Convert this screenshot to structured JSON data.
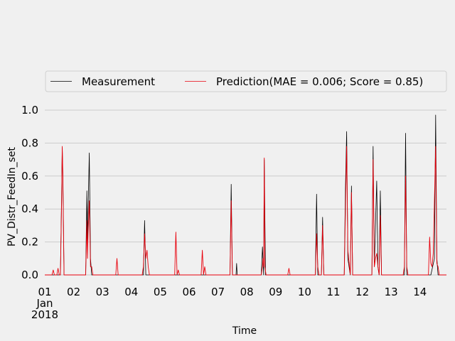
{
  "chart_data": {
    "type": "line",
    "xlabel": "Time",
    "ylabel": "PV_Distr_FeedIn_set",
    "ylim": [
      0.0,
      1.1
    ],
    "xlim": [
      "2018-01-01",
      "2018-01-14T22:00"
    ],
    "grid": "horizontal",
    "legend_placement": "top",
    "x_tick_labels": [
      "01",
      "02",
      "03",
      "04",
      "05",
      "06",
      "07",
      "08",
      "09",
      "10",
      "11",
      "12",
      "13",
      "14"
    ],
    "x_tick_dates": [
      "2018-01-01",
      "2018-01-02",
      "2018-01-03",
      "2018-01-04",
      "2018-01-05",
      "2018-01-06",
      "2018-01-07",
      "2018-01-08",
      "2018-01-09",
      "2018-01-10",
      "2018-01-11",
      "2018-01-12",
      "2018-01-13",
      "2018-01-14"
    ],
    "x_tick_sub": [
      "Jan",
      "2018"
    ],
    "y_ticks": [
      0.0,
      0.2,
      0.4,
      0.6,
      0.8,
      1.0
    ],
    "y_tick_labels": [
      "0.0",
      "0.2",
      "0.4",
      "0.6",
      "0.8",
      "1.0"
    ],
    "series": [
      {
        "name": "Measurement",
        "color": "#000000",
        "points": [
          [
            "2018-01-01T00:00",
            0.0
          ],
          [
            "2018-01-01T13:00",
            0.0
          ],
          [
            "2018-01-01T14:00",
            0.5
          ],
          [
            "2018-01-01T14:30",
            0.77
          ],
          [
            "2018-01-01T15:00",
            0.6
          ],
          [
            "2018-01-01T16:00",
            0.0
          ],
          [
            "2018-01-02T10:00",
            0.0
          ],
          [
            "2018-01-02T11:00",
            0.51
          ],
          [
            "2018-01-02T11:30",
            0.2
          ],
          [
            "2018-01-02T12:00",
            0.38
          ],
          [
            "2018-01-02T13:00",
            0.74
          ],
          [
            "2018-01-02T14:00",
            0.1
          ],
          [
            "2018-01-02T15:00",
            0.0
          ],
          [
            "2018-01-04T10:00",
            0.0
          ],
          [
            "2018-01-04T11:00",
            0.33
          ],
          [
            "2018-01-04T12:00",
            0.0
          ],
          [
            "2018-01-07T10:00",
            0.0
          ],
          [
            "2018-01-07T11:00",
            0.55
          ],
          [
            "2018-01-07T12:00",
            0.0
          ],
          [
            "2018-01-07T15:00",
            0.0
          ],
          [
            "2018-01-07T15:30",
            0.07
          ],
          [
            "2018-01-07T16:00",
            0.0
          ],
          [
            "2018-01-08T12:00",
            0.0
          ],
          [
            "2018-01-08T13:00",
            0.17
          ],
          [
            "2018-01-08T14:00",
            0.0
          ],
          [
            "2018-01-08T14:30",
            0.7
          ],
          [
            "2018-01-08T15:30",
            0.0
          ],
          [
            "2018-01-10T09:00",
            0.0
          ],
          [
            "2018-01-10T10:00",
            0.49
          ],
          [
            "2018-01-10T11:00",
            0.0
          ],
          [
            "2018-01-10T14:00",
            0.0
          ],
          [
            "2018-01-10T15:00",
            0.35
          ],
          [
            "2018-01-10T16:00",
            0.0
          ],
          [
            "2018-01-11T09:00",
            0.0
          ],
          [
            "2018-01-11T10:00",
            0.52
          ],
          [
            "2018-01-11T11:00",
            0.87
          ],
          [
            "2018-01-11T12:00",
            0.1
          ],
          [
            "2018-01-11T14:00",
            0.0
          ],
          [
            "2018-01-11T15:00",
            0.54
          ],
          [
            "2018-01-11T16:00",
            0.0
          ],
          [
            "2018-01-12T08:00",
            0.0
          ],
          [
            "2018-01-12T09:00",
            0.78
          ],
          [
            "2018-01-12T10:00",
            0.05
          ],
          [
            "2018-01-12T12:00",
            0.57
          ],
          [
            "2018-01-12T13:00",
            0.05
          ],
          [
            "2018-01-12T14:00",
            0.0
          ],
          [
            "2018-01-12T15:00",
            0.51
          ],
          [
            "2018-01-12T16:00",
            0.0
          ],
          [
            "2018-01-13T11:00",
            0.0
          ],
          [
            "2018-01-13T12:00",
            0.86
          ],
          [
            "2018-01-13T13:00",
            0.0
          ],
          [
            "2018-01-14T09:00",
            0.0
          ],
          [
            "2018-01-14T12:00",
            0.1
          ],
          [
            "2018-01-14T13:00",
            0.97
          ],
          [
            "2018-01-14T14:00",
            0.1
          ],
          [
            "2018-01-14T15:00",
            0.0
          ],
          [
            "2018-01-14T22:00",
            0.0
          ]
        ]
      },
      {
        "name": "Prediction(MAE = 0.006; Score = 0.85)",
        "color": "#e8000b",
        "points": [
          [
            "2018-01-01T00:00",
            0.0
          ],
          [
            "2018-01-01T06:00",
            0.0
          ],
          [
            "2018-01-01T07:00",
            0.03
          ],
          [
            "2018-01-01T08:00",
            0.0
          ],
          [
            "2018-01-01T10:00",
            0.0
          ],
          [
            "2018-01-01T11:00",
            0.04
          ],
          [
            "2018-01-01T12:00",
            0.0
          ],
          [
            "2018-01-01T13:00",
            0.0
          ],
          [
            "2018-01-01T14:00",
            0.45
          ],
          [
            "2018-01-01T14:30",
            0.78
          ],
          [
            "2018-01-01T15:00",
            0.62
          ],
          [
            "2018-01-01T16:00",
            0.0
          ],
          [
            "2018-01-02T10:00",
            0.0
          ],
          [
            "2018-01-02T11:00",
            0.33
          ],
          [
            "2018-01-02T11:30",
            0.1
          ],
          [
            "2018-01-02T12:00",
            0.25
          ],
          [
            "2018-01-02T13:00",
            0.45
          ],
          [
            "2018-01-02T14:00",
            0.05
          ],
          [
            "2018-01-02T15:00",
            0.05
          ],
          [
            "2018-01-02T16:00",
            0.0
          ],
          [
            "2018-01-03T11:00",
            0.0
          ],
          [
            "2018-01-03T12:00",
            0.1
          ],
          [
            "2018-01-03T13:00",
            0.0
          ],
          [
            "2018-01-04T09:00",
            0.0
          ],
          [
            "2018-01-04T10:00",
            0.05
          ],
          [
            "2018-01-04T11:00",
            0.25
          ],
          [
            "2018-01-04T12:00",
            0.1
          ],
          [
            "2018-01-04T13:00",
            0.15
          ],
          [
            "2018-01-04T14:00",
            0.05
          ],
          [
            "2018-01-04T15:00",
            0.0
          ],
          [
            "2018-01-05T12:00",
            0.0
          ],
          [
            "2018-01-05T13:00",
            0.26
          ],
          [
            "2018-01-05T14:00",
            0.0
          ],
          [
            "2018-01-05T15:00",
            0.03
          ],
          [
            "2018-01-05T16:00",
            0.0
          ],
          [
            "2018-01-06T10:00",
            0.0
          ],
          [
            "2018-01-06T11:00",
            0.15
          ],
          [
            "2018-01-06T12:00",
            0.0
          ],
          [
            "2018-01-06T13:00",
            0.05
          ],
          [
            "2018-01-06T14:00",
            0.0
          ],
          [
            "2018-01-07T10:00",
            0.0
          ],
          [
            "2018-01-07T11:00",
            0.45
          ],
          [
            "2018-01-07T12:00",
            0.0
          ],
          [
            "2018-01-08T12:00",
            0.0
          ],
          [
            "2018-01-08T13:00",
            0.05
          ],
          [
            "2018-01-08T13:30",
            0.1
          ],
          [
            "2018-01-08T14:00",
            0.05
          ],
          [
            "2018-01-08T14:30",
            0.71
          ],
          [
            "2018-01-08T15:00",
            0.05
          ],
          [
            "2018-01-08T16:00",
            0.0
          ],
          [
            "2018-01-09T10:00",
            0.0
          ],
          [
            "2018-01-09T11:00",
            0.04
          ],
          [
            "2018-01-09T12:00",
            0.0
          ],
          [
            "2018-01-10T09:00",
            0.0
          ],
          [
            "2018-01-10T10:00",
            0.25
          ],
          [
            "2018-01-10T11:00",
            0.05
          ],
          [
            "2018-01-10T12:00",
            0.0
          ],
          [
            "2018-01-10T14:00",
            0.0
          ],
          [
            "2018-01-10T15:00",
            0.3
          ],
          [
            "2018-01-10T16:00",
            0.0
          ],
          [
            "2018-01-11T09:00",
            0.0
          ],
          [
            "2018-01-11T10:00",
            0.4
          ],
          [
            "2018-01-11T11:00",
            0.78
          ],
          [
            "2018-01-11T12:00",
            0.15
          ],
          [
            "2018-01-11T14:00",
            0.0
          ],
          [
            "2018-01-11T15:00",
            0.5
          ],
          [
            "2018-01-11T16:00",
            0.0
          ],
          [
            "2018-01-12T08:00",
            0.0
          ],
          [
            "2018-01-12T09:00",
            0.7
          ],
          [
            "2018-01-12T10:00",
            0.05
          ],
          [
            "2018-01-12T11:00",
            0.1
          ],
          [
            "2018-01-12T12:00",
            0.13
          ],
          [
            "2018-01-12T13:00",
            0.05
          ],
          [
            "2018-01-12T14:00",
            0.0
          ],
          [
            "2018-01-12T15:00",
            0.36
          ],
          [
            "2018-01-12T16:00",
            0.0
          ],
          [
            "2018-01-13T10:00",
            0.0
          ],
          [
            "2018-01-13T11:00",
            0.05
          ],
          [
            "2018-01-13T12:00",
            0.6
          ],
          [
            "2018-01-13T13:00",
            0.05
          ],
          [
            "2018-01-13T14:00",
            0.0
          ],
          [
            "2018-01-14T07:00",
            0.0
          ],
          [
            "2018-01-14T08:00",
            0.23
          ],
          [
            "2018-01-14T09:00",
            0.07
          ],
          [
            "2018-01-14T10:00",
            0.05
          ],
          [
            "2018-01-14T11:00",
            0.13
          ],
          [
            "2018-01-14T13:00",
            0.78
          ],
          [
            "2018-01-14T14:00",
            0.07
          ],
          [
            "2018-01-14T15:00",
            0.05
          ],
          [
            "2018-01-14T16:00",
            0.0
          ],
          [
            "2018-01-14T22:00",
            0.0
          ]
        ]
      }
    ]
  },
  "colors": {
    "background": "#f0f0f0",
    "grid": "#cbcbcb",
    "measurement": "#000000",
    "prediction": "#e8000b"
  }
}
